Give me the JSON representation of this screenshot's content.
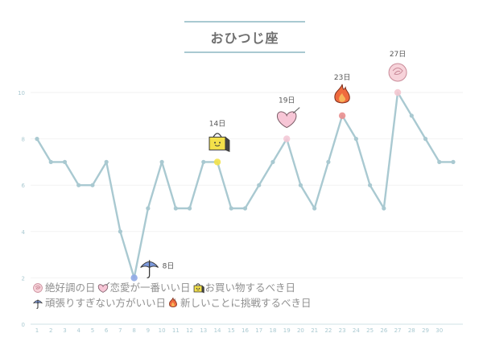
{
  "title": "おひつじ座",
  "chart_data": {
    "type": "line",
    "x": [
      1,
      2,
      3,
      4,
      5,
      6,
      7,
      8,
      9,
      10,
      11,
      12,
      13,
      14,
      15,
      16,
      17,
      18,
      19,
      20,
      21,
      22,
      23,
      24,
      25,
      26,
      27,
      28,
      29,
      30,
      31
    ],
    "x_tick_labels": [
      "1",
      "2",
      "3",
      "4",
      "5",
      "6",
      "7",
      "8",
      "9",
      "10",
      "11",
      "12",
      "13",
      "14",
      "15",
      "16",
      "17",
      "18",
      "19",
      "20",
      "21",
      "22",
      "23",
      "24",
      "25",
      "26",
      "27",
      "28",
      "29",
      "30"
    ],
    "values": [
      8,
      7,
      7,
      6,
      6,
      7,
      4,
      2,
      5,
      7,
      5,
      5,
      7,
      7,
      5,
      5,
      6,
      7,
      8,
      6,
      5,
      7,
      9,
      8,
      6,
      5,
      10,
      9,
      8,
      7,
      7
    ],
    "ylim": [
      0,
      10
    ],
    "y_ticks": [
      0,
      2,
      4,
      6,
      8,
      10
    ],
    "grid": true,
    "line_color": "#a9c9d1",
    "annotations": [
      {
        "x": 8,
        "label": "8日",
        "icon": "umbrella-icon",
        "dot_color": "#8fa8e6"
      },
      {
        "x": 14,
        "label": "14日",
        "icon": "shopping-bag-icon",
        "dot_color": "#f2e24a"
      },
      {
        "x": 19,
        "label": "19日",
        "icon": "heart-letter-icon",
        "dot_color": "#f4c9d6"
      },
      {
        "x": 23,
        "label": "23日",
        "icon": "fire-icon",
        "dot_color": "#e98f8f"
      },
      {
        "x": 27,
        "label": "27日",
        "icon": "rose-icon",
        "dot_color": "#f3c7cf"
      }
    ],
    "legend": [
      [
        {
          "icon": "rose-icon",
          "text": "絶好調の日"
        },
        {
          "icon": "heart-letter-icon",
          "text": "恋愛が一番いい日"
        },
        {
          "icon": "shopping-bag-icon",
          "text": "お買い物するべき日"
        }
      ],
      [
        {
          "icon": "umbrella-icon",
          "text": "頑張りすぎない方がいい日"
        },
        {
          "icon": "fire-icon",
          "text": "新しいことに挑戦するべき日"
        }
      ]
    ]
  }
}
